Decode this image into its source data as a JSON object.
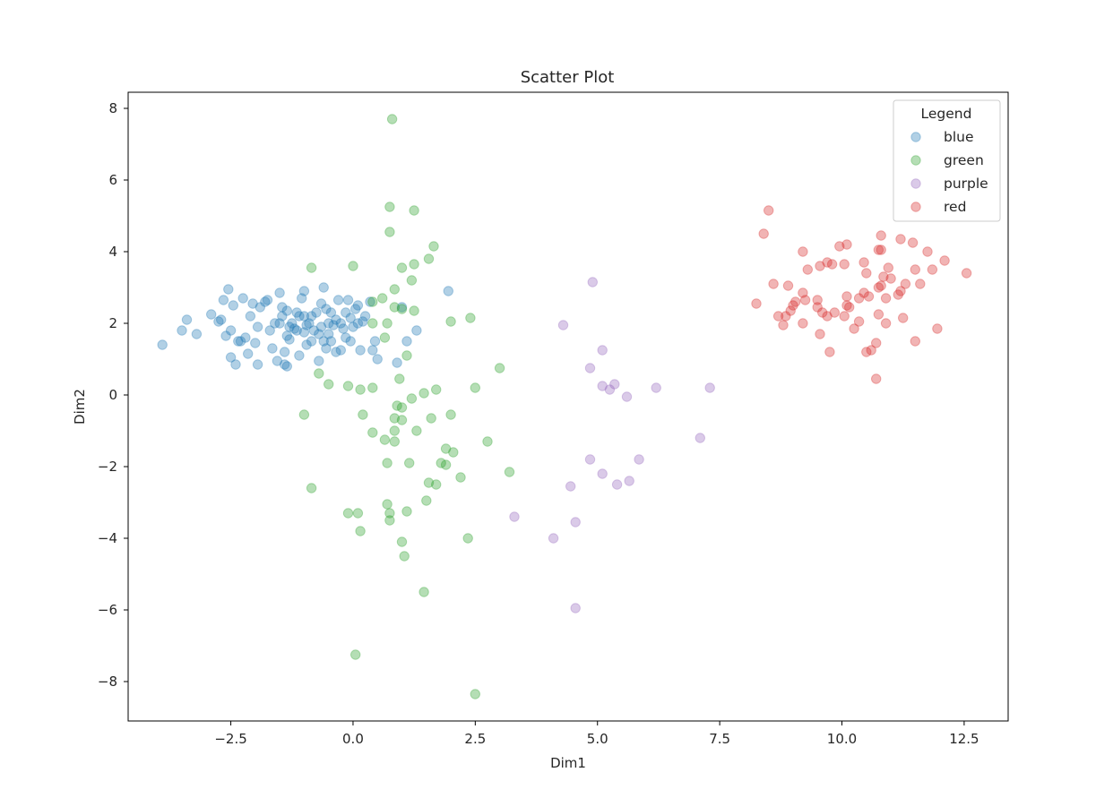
{
  "chart_data": {
    "type": "scatter",
    "title": "Scatter Plot",
    "xlabel": "Dim1",
    "ylabel": "Dim2",
    "xlim": [
      -4.6,
      13.4
    ],
    "ylim": [
      -9.1,
      8.45
    ],
    "xticks": [
      -2.5,
      0.0,
      2.5,
      5.0,
      7.5,
      10.0,
      12.5
    ],
    "xtick_labels": [
      "−2.5",
      "0.0",
      "2.5",
      "5.0",
      "7.5",
      "10.0",
      "12.5"
    ],
    "yticks": [
      -8,
      -6,
      -4,
      -2,
      0,
      2,
      4,
      6,
      8
    ],
    "ytick_labels": [
      "−8",
      "−6",
      "−4",
      "−2",
      "0",
      "2",
      "4",
      "6",
      "8"
    ],
    "grid": false,
    "marker_alpha": 0.35,
    "legend": {
      "title": "Legend",
      "placement": "upper right"
    },
    "series": [
      {
        "name": "blue",
        "color": "#1f77b4",
        "points": [
          [
            -3.9,
            1.4
          ],
          [
            -3.5,
            1.8
          ],
          [
            -3.4,
            2.1
          ],
          [
            -3.2,
            1.7
          ],
          [
            -2.9,
            2.25
          ],
          [
            -2.75,
            2.05
          ],
          [
            -2.7,
            2.1
          ],
          [
            -2.65,
            2.65
          ],
          [
            -2.6,
            1.65
          ],
          [
            -2.55,
            2.95
          ],
          [
            -2.5,
            1.8
          ],
          [
            -2.5,
            1.05
          ],
          [
            -2.45,
            2.5
          ],
          [
            -2.4,
            0.85
          ],
          [
            -2.35,
            1.5
          ],
          [
            -2.3,
            1.5
          ],
          [
            -2.25,
            2.7
          ],
          [
            -2.2,
            1.6
          ],
          [
            -2.15,
            1.15
          ],
          [
            -2.1,
            2.2
          ],
          [
            -2.05,
            2.55
          ],
          [
            -2.0,
            1.45
          ],
          [
            -1.95,
            1.9
          ],
          [
            -1.95,
            0.85
          ],
          [
            -1.9,
            2.45
          ],
          [
            -1.8,
            2.6
          ],
          [
            -1.75,
            2.65
          ],
          [
            -1.7,
            1.8
          ],
          [
            -1.65,
            1.3
          ],
          [
            -1.6,
            2.0
          ],
          [
            -1.55,
            0.95
          ],
          [
            -1.5,
            2.85
          ],
          [
            -1.5,
            2.0
          ],
          [
            -1.45,
            2.45
          ],
          [
            -1.45,
            2.2
          ],
          [
            -1.4,
            1.2
          ],
          [
            -1.4,
            0.85
          ],
          [
            -1.35,
            2.35
          ],
          [
            -1.35,
            1.65
          ],
          [
            -1.3,
            1.9
          ],
          [
            -1.3,
            1.55
          ],
          [
            -1.25,
            2.0
          ],
          [
            -1.2,
            1.85
          ],
          [
            -1.15,
            2.3
          ],
          [
            -1.15,
            1.8
          ],
          [
            -1.1,
            2.2
          ],
          [
            -1.1,
            1.1
          ],
          [
            -1.05,
            2.7
          ],
          [
            -1.0,
            2.9
          ],
          [
            -1.0,
            2.2
          ],
          [
            -1.0,
            1.75
          ],
          [
            -0.95,
            1.95
          ],
          [
            -0.95,
            1.4
          ],
          [
            -0.9,
            2.0
          ],
          [
            -0.85,
            2.2
          ],
          [
            -0.85,
            1.5
          ],
          [
            -0.8,
            1.8
          ],
          [
            -0.75,
            2.3
          ],
          [
            -0.7,
            1.7
          ],
          [
            -0.7,
            0.95
          ],
          [
            -0.65,
            2.55
          ],
          [
            -0.65,
            1.9
          ],
          [
            -0.6,
            1.5
          ],
          [
            -0.6,
            3.0
          ],
          [
            -0.55,
            2.4
          ],
          [
            -0.55,
            1.3
          ],
          [
            -0.5,
            2.0
          ],
          [
            -0.5,
            1.7
          ],
          [
            -0.45,
            2.3
          ],
          [
            -0.45,
            1.5
          ],
          [
            -0.4,
            1.95
          ],
          [
            -0.35,
            2.1
          ],
          [
            -0.35,
            1.2
          ],
          [
            -0.3,
            2.65
          ],
          [
            -0.25,
            2.0
          ],
          [
            -0.2,
            1.85
          ],
          [
            -0.15,
            2.3
          ],
          [
            -0.15,
            1.6
          ],
          [
            -0.1,
            2.65
          ],
          [
            -0.05,
            2.15
          ],
          [
            -0.05,
            1.5
          ],
          [
            0.0,
            1.9
          ],
          [
            0.05,
            2.4
          ],
          [
            0.1,
            2.5
          ],
          [
            0.1,
            2.0
          ],
          [
            0.15,
            1.25
          ],
          [
            0.2,
            2.05
          ],
          [
            0.25,
            2.2
          ],
          [
            0.35,
            2.6
          ],
          [
            0.4,
            1.25
          ],
          [
            0.45,
            1.5
          ],
          [
            0.5,
            1.0
          ],
          [
            0.9,
            0.9
          ],
          [
            1.0,
            2.45
          ],
          [
            1.1,
            1.5
          ],
          [
            1.3,
            1.8
          ],
          [
            1.95,
            2.9
          ],
          [
            -1.35,
            0.8
          ],
          [
            -0.25,
            1.25
          ]
        ]
      },
      {
        "name": "green",
        "color": "#2ca02c",
        "points": [
          [
            0.8,
            7.7
          ],
          [
            0.75,
            5.25
          ],
          [
            1.25,
            5.15
          ],
          [
            0.75,
            4.55
          ],
          [
            1.65,
            4.15
          ],
          [
            1.55,
            3.8
          ],
          [
            -0.85,
            3.55
          ],
          [
            0.0,
            3.6
          ],
          [
            1.0,
            3.55
          ],
          [
            1.25,
            3.65
          ],
          [
            1.2,
            3.2
          ],
          [
            0.85,
            2.95
          ],
          [
            0.6,
            2.7
          ],
          [
            0.4,
            2.6
          ],
          [
            0.85,
            2.45
          ],
          [
            1.0,
            2.4
          ],
          [
            1.25,
            2.35
          ],
          [
            0.4,
            2.0
          ],
          [
            0.7,
            2.0
          ],
          [
            2.0,
            2.05
          ],
          [
            2.4,
            2.15
          ],
          [
            0.65,
            1.6
          ],
          [
            1.1,
            1.1
          ],
          [
            -0.7,
            0.6
          ],
          [
            3.0,
            0.75
          ],
          [
            0.95,
            0.45
          ],
          [
            -0.5,
            0.3
          ],
          [
            -0.1,
            0.25
          ],
          [
            0.4,
            0.2
          ],
          [
            1.2,
            -0.1
          ],
          [
            1.45,
            0.05
          ],
          [
            1.7,
            0.15
          ],
          [
            2.5,
            0.2
          ],
          [
            0.15,
            0.15
          ],
          [
            0.9,
            -0.3
          ],
          [
            1.0,
            -0.35
          ],
          [
            -1.0,
            -0.55
          ],
          [
            0.2,
            -0.55
          ],
          [
            0.85,
            -0.65
          ],
          [
            1.0,
            -0.7
          ],
          [
            1.6,
            -0.65
          ],
          [
            2.0,
            -0.55
          ],
          [
            0.4,
            -1.05
          ],
          [
            0.85,
            -1.0
          ],
          [
            1.3,
            -1.0
          ],
          [
            0.65,
            -1.25
          ],
          [
            0.85,
            -1.3
          ],
          [
            2.75,
            -1.3
          ],
          [
            1.9,
            -1.5
          ],
          [
            2.05,
            -1.6
          ],
          [
            0.7,
            -1.9
          ],
          [
            1.15,
            -1.9
          ],
          [
            1.8,
            -1.9
          ],
          [
            1.9,
            -1.95
          ],
          [
            3.2,
            -2.15
          ],
          [
            2.2,
            -2.3
          ],
          [
            1.55,
            -2.45
          ],
          [
            1.7,
            -2.5
          ],
          [
            -0.85,
            -2.6
          ],
          [
            0.7,
            -3.05
          ],
          [
            1.1,
            -3.25
          ],
          [
            0.75,
            -3.3
          ],
          [
            0.75,
            -3.5
          ],
          [
            -0.1,
            -3.3
          ],
          [
            0.1,
            -3.3
          ],
          [
            1.5,
            -2.95
          ],
          [
            0.15,
            -3.8
          ],
          [
            2.35,
            -4.0
          ],
          [
            1.0,
            -4.1
          ],
          [
            1.05,
            -4.5
          ],
          [
            1.45,
            -5.5
          ],
          [
            0.05,
            -7.25
          ],
          [
            2.5,
            -8.35
          ]
        ]
      },
      {
        "name": "purple",
        "color": "#9467bd",
        "points": [
          [
            4.9,
            3.15
          ],
          [
            4.3,
            1.95
          ],
          [
            5.1,
            1.25
          ],
          [
            4.85,
            0.75
          ],
          [
            5.1,
            0.25
          ],
          [
            5.25,
            0.15
          ],
          [
            5.35,
            0.3
          ],
          [
            5.6,
            -0.05
          ],
          [
            6.2,
            0.2
          ],
          [
            7.3,
            0.2
          ],
          [
            7.1,
            -1.2
          ],
          [
            4.85,
            -1.8
          ],
          [
            5.1,
            -2.2
          ],
          [
            5.85,
            -1.8
          ],
          [
            5.4,
            -2.5
          ],
          [
            5.65,
            -2.4
          ],
          [
            4.45,
            -2.55
          ],
          [
            3.3,
            -3.4
          ],
          [
            4.55,
            -3.55
          ],
          [
            4.1,
            -4.0
          ],
          [
            4.55,
            -5.95
          ]
        ]
      },
      {
        "name": "red",
        "color": "#d62728",
        "points": [
          [
            8.5,
            5.15
          ],
          [
            8.4,
            4.5
          ],
          [
            10.8,
            4.45
          ],
          [
            11.2,
            4.35
          ],
          [
            11.45,
            4.25
          ],
          [
            10.1,
            4.2
          ],
          [
            9.95,
            4.15
          ],
          [
            10.75,
            4.05
          ],
          [
            10.8,
            4.05
          ],
          [
            9.2,
            4.0
          ],
          [
            11.75,
            4.0
          ],
          [
            12.1,
            3.75
          ],
          [
            9.7,
            3.7
          ],
          [
            9.8,
            3.65
          ],
          [
            10.05,
            3.65
          ],
          [
            10.45,
            3.7
          ],
          [
            9.55,
            3.6
          ],
          [
            10.95,
            3.55
          ],
          [
            11.5,
            3.5
          ],
          [
            11.85,
            3.5
          ],
          [
            9.3,
            3.5
          ],
          [
            12.55,
            3.4
          ],
          [
            10.5,
            3.4
          ],
          [
            11.0,
            3.25
          ],
          [
            10.85,
            3.3
          ],
          [
            8.6,
            3.1
          ],
          [
            8.9,
            3.05
          ],
          [
            10.8,
            3.05
          ],
          [
            10.75,
            3.0
          ],
          [
            11.3,
            3.1
          ],
          [
            11.6,
            3.1
          ],
          [
            11.2,
            2.9
          ],
          [
            9.2,
            2.85
          ],
          [
            10.45,
            2.85
          ],
          [
            10.55,
            2.75
          ],
          [
            10.1,
            2.75
          ],
          [
            11.15,
            2.8
          ],
          [
            9.25,
            2.65
          ],
          [
            9.5,
            2.65
          ],
          [
            10.35,
            2.7
          ],
          [
            10.9,
            2.7
          ],
          [
            8.25,
            2.55
          ],
          [
            9.05,
            2.6
          ],
          [
            9.0,
            2.5
          ],
          [
            10.1,
            2.5
          ],
          [
            10.15,
            2.45
          ],
          [
            9.5,
            2.45
          ],
          [
            8.95,
            2.35
          ],
          [
            9.85,
            2.3
          ],
          [
            9.6,
            2.3
          ],
          [
            9.7,
            2.2
          ],
          [
            10.05,
            2.2
          ],
          [
            8.85,
            2.2
          ],
          [
            8.7,
            2.2
          ],
          [
            10.75,
            2.25
          ],
          [
            11.25,
            2.15
          ],
          [
            10.35,
            2.05
          ],
          [
            9.2,
            2.0
          ],
          [
            8.8,
            1.95
          ],
          [
            10.9,
            2.0
          ],
          [
            11.95,
            1.85
          ],
          [
            10.25,
            1.85
          ],
          [
            9.55,
            1.7
          ],
          [
            10.7,
            1.45
          ],
          [
            11.5,
            1.5
          ],
          [
            10.6,
            1.25
          ],
          [
            10.5,
            1.2
          ],
          [
            9.75,
            1.2
          ],
          [
            10.7,
            0.45
          ]
        ]
      }
    ]
  }
}
